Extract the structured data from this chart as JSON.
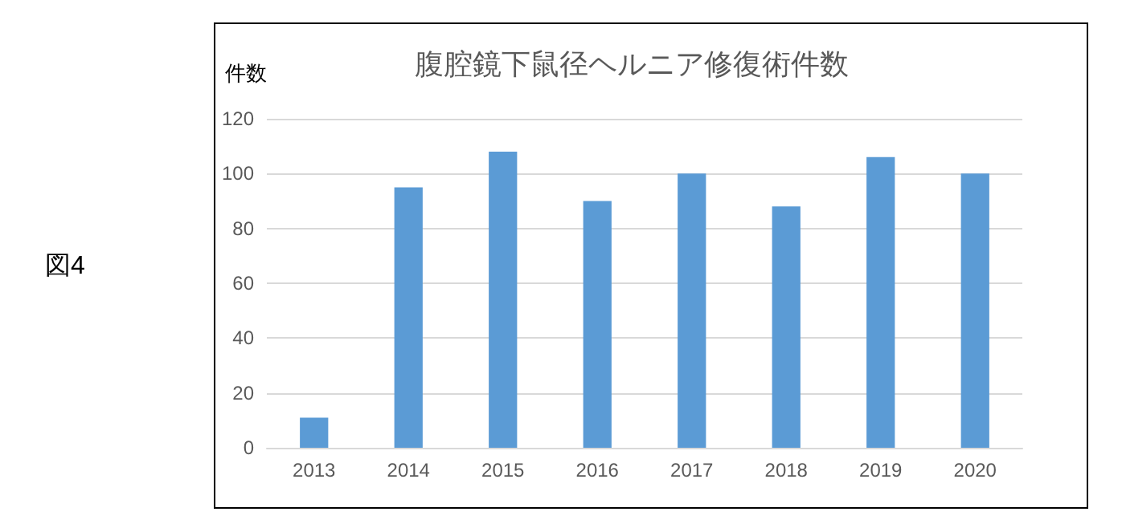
{
  "chart_data": {
    "type": "bar",
    "title": "腹腔鏡下鼠径ヘルニア修復術件数",
    "ylabel": "件数",
    "annotations": [
      "図4"
    ],
    "categories": [
      "2013",
      "2014",
      "2015",
      "2016",
      "2017",
      "2018",
      "2019",
      "2020"
    ],
    "values": [
      11,
      95,
      108,
      90,
      100,
      88,
      106,
      100
    ],
    "color": "#5b9bd5",
    "ylim": [
      0,
      120
    ],
    "yticks": [
      0,
      20,
      40,
      60,
      80,
      100,
      120
    ],
    "grid": "y"
  }
}
